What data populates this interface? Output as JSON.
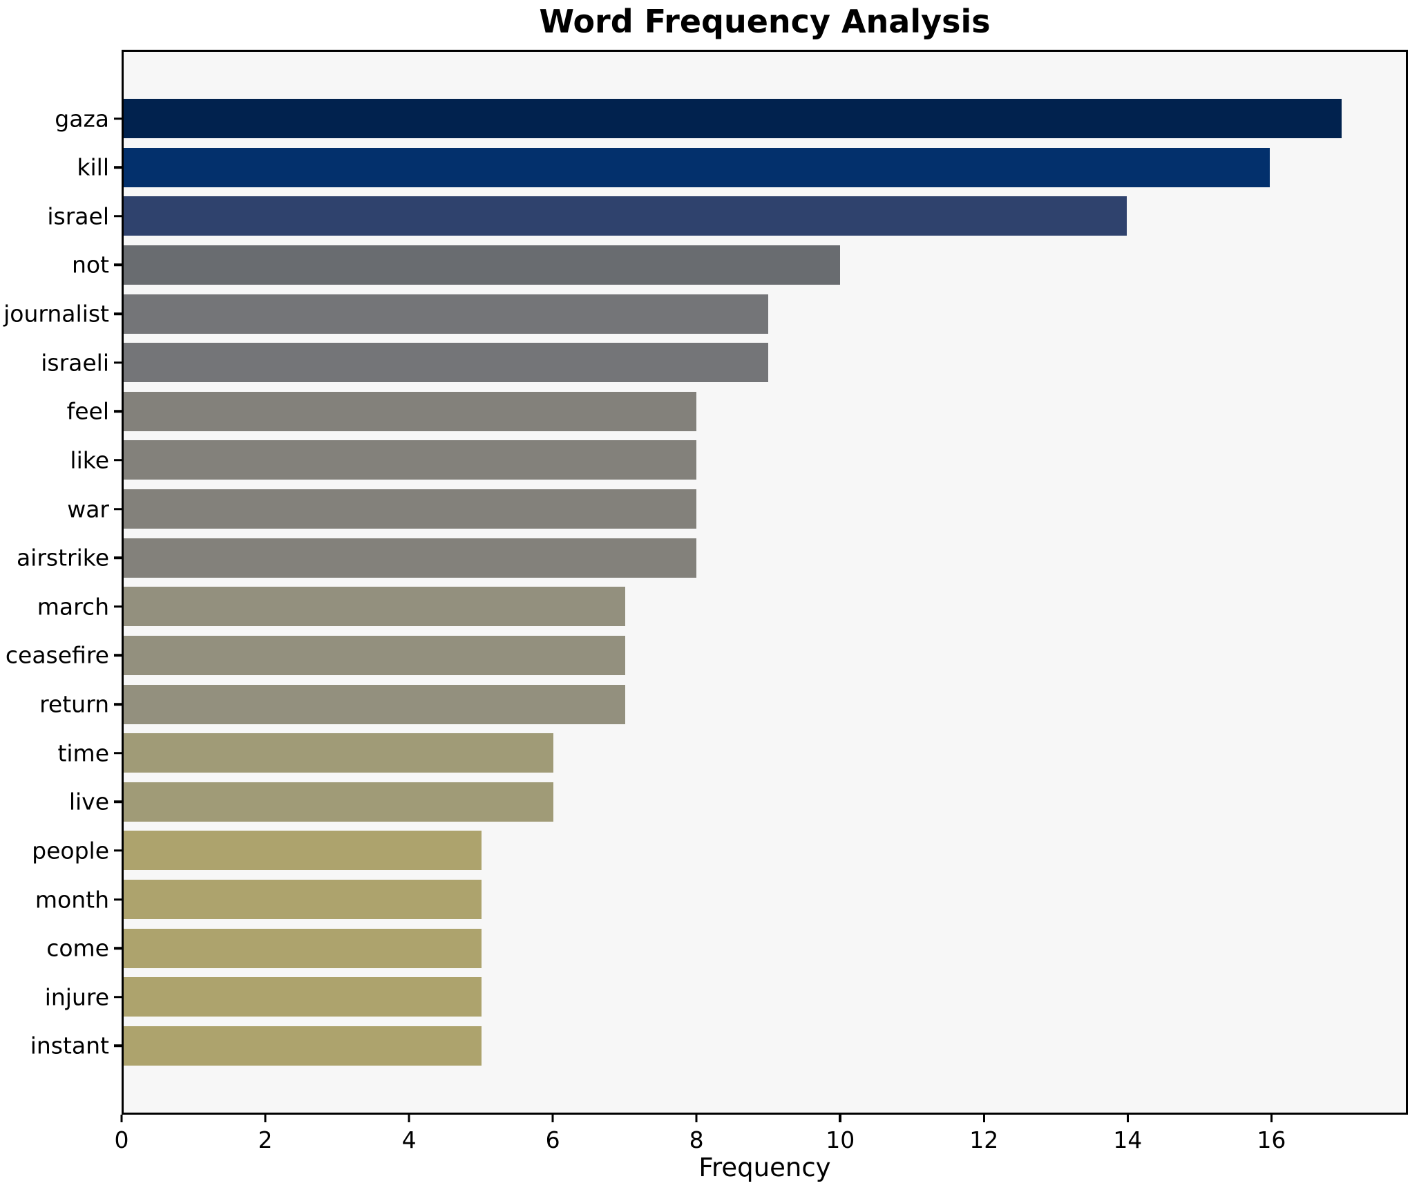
{
  "title": "Word Frequency Analysis",
  "chart_data": {
    "type": "bar",
    "orientation": "horizontal",
    "title": "Word Frequency Analysis",
    "xlabel": "Frequency",
    "ylabel": "",
    "categories": [
      "gaza",
      "kill",
      "israel",
      "not",
      "journalist",
      "israeli",
      "feel",
      "like",
      "war",
      "airstrike",
      "march",
      "ceasefire",
      "return",
      "time",
      "live",
      "people",
      "month",
      "come",
      "injure",
      "instant"
    ],
    "values": [
      17,
      16,
      14,
      10,
      9,
      9,
      8,
      8,
      8,
      8,
      7,
      7,
      7,
      6,
      6,
      5,
      5,
      5,
      5,
      5
    ],
    "bar_colors": [
      "#01224e",
      "#03306c",
      "#2f426d",
      "#696c70",
      "#747578",
      "#747578",
      "#83817b",
      "#83817b",
      "#83817b",
      "#83817b",
      "#93907e",
      "#93907e",
      "#93907e",
      "#a09b77",
      "#a09b77",
      "#ada36d",
      "#ada36d",
      "#ada36d",
      "#ada36d",
      "#ada36d"
    ],
    "x_ticks": [
      0,
      2,
      4,
      6,
      8,
      10,
      12,
      14,
      16
    ],
    "xlim": [
      0,
      17.9
    ],
    "grid": false,
    "legend": null,
    "plot_background": "#f7f7f7",
    "figure_background": "#ffffff",
    "spine_color": "#000000"
  }
}
